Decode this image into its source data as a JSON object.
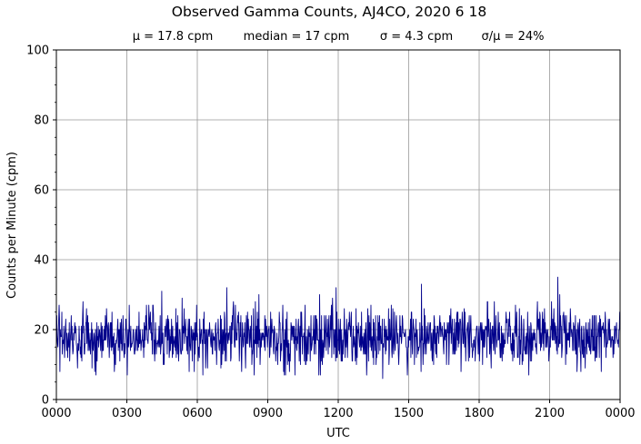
{
  "chart_data": {
    "type": "line",
    "title": "Observed Gamma Counts, AJ4CO, 2020 6 18",
    "subtitle": {
      "mean": "μ = 17.8 cpm",
      "median": "median = 17 cpm",
      "sigma": "σ = 4.3 cpm",
      "ratio": "σ/μ = 24%"
    },
    "xlabel": "UTC",
    "ylabel": "Counts per Minute (cpm)",
    "xlim": [
      0,
      24
    ],
    "ylim": [
      0,
      100
    ],
    "x_ticks": [
      {
        "value": 0,
        "label": "0000"
      },
      {
        "value": 3,
        "label": "0300"
      },
      {
        "value": 6,
        "label": "0600"
      },
      {
        "value": 9,
        "label": "0900"
      },
      {
        "value": 12,
        "label": "1200"
      },
      {
        "value": 15,
        "label": "1500"
      },
      {
        "value": 18,
        "label": "1800"
      },
      {
        "value": 21,
        "label": "2100"
      },
      {
        "value": 24,
        "label": "0000"
      }
    ],
    "y_ticks": [
      {
        "value": 0,
        "label": "0"
      },
      {
        "value": 20,
        "label": "20"
      },
      {
        "value": 40,
        "label": "40"
      },
      {
        "value": 60,
        "label": "60"
      },
      {
        "value": 80,
        "label": "80"
      },
      {
        "value": 100,
        "label": "100"
      }
    ],
    "grid": true,
    "series": [
      {
        "color": "#00008b",
        "sampling": "one value per minute (1440 samples), x in hours UTC",
        "mean": 17.8,
        "median": 17,
        "sigma": 4.3,
        "min": 6,
        "max": 35,
        "notable_points": [
          {
            "x": 21.35,
            "y": 35
          },
          {
            "x": 15.55,
            "y": 33
          },
          {
            "x": 7.25,
            "y": 32
          },
          {
            "x": 11.9,
            "y": 32
          },
          {
            "x": 13.9,
            "y": 6
          }
        ]
      }
    ]
  }
}
